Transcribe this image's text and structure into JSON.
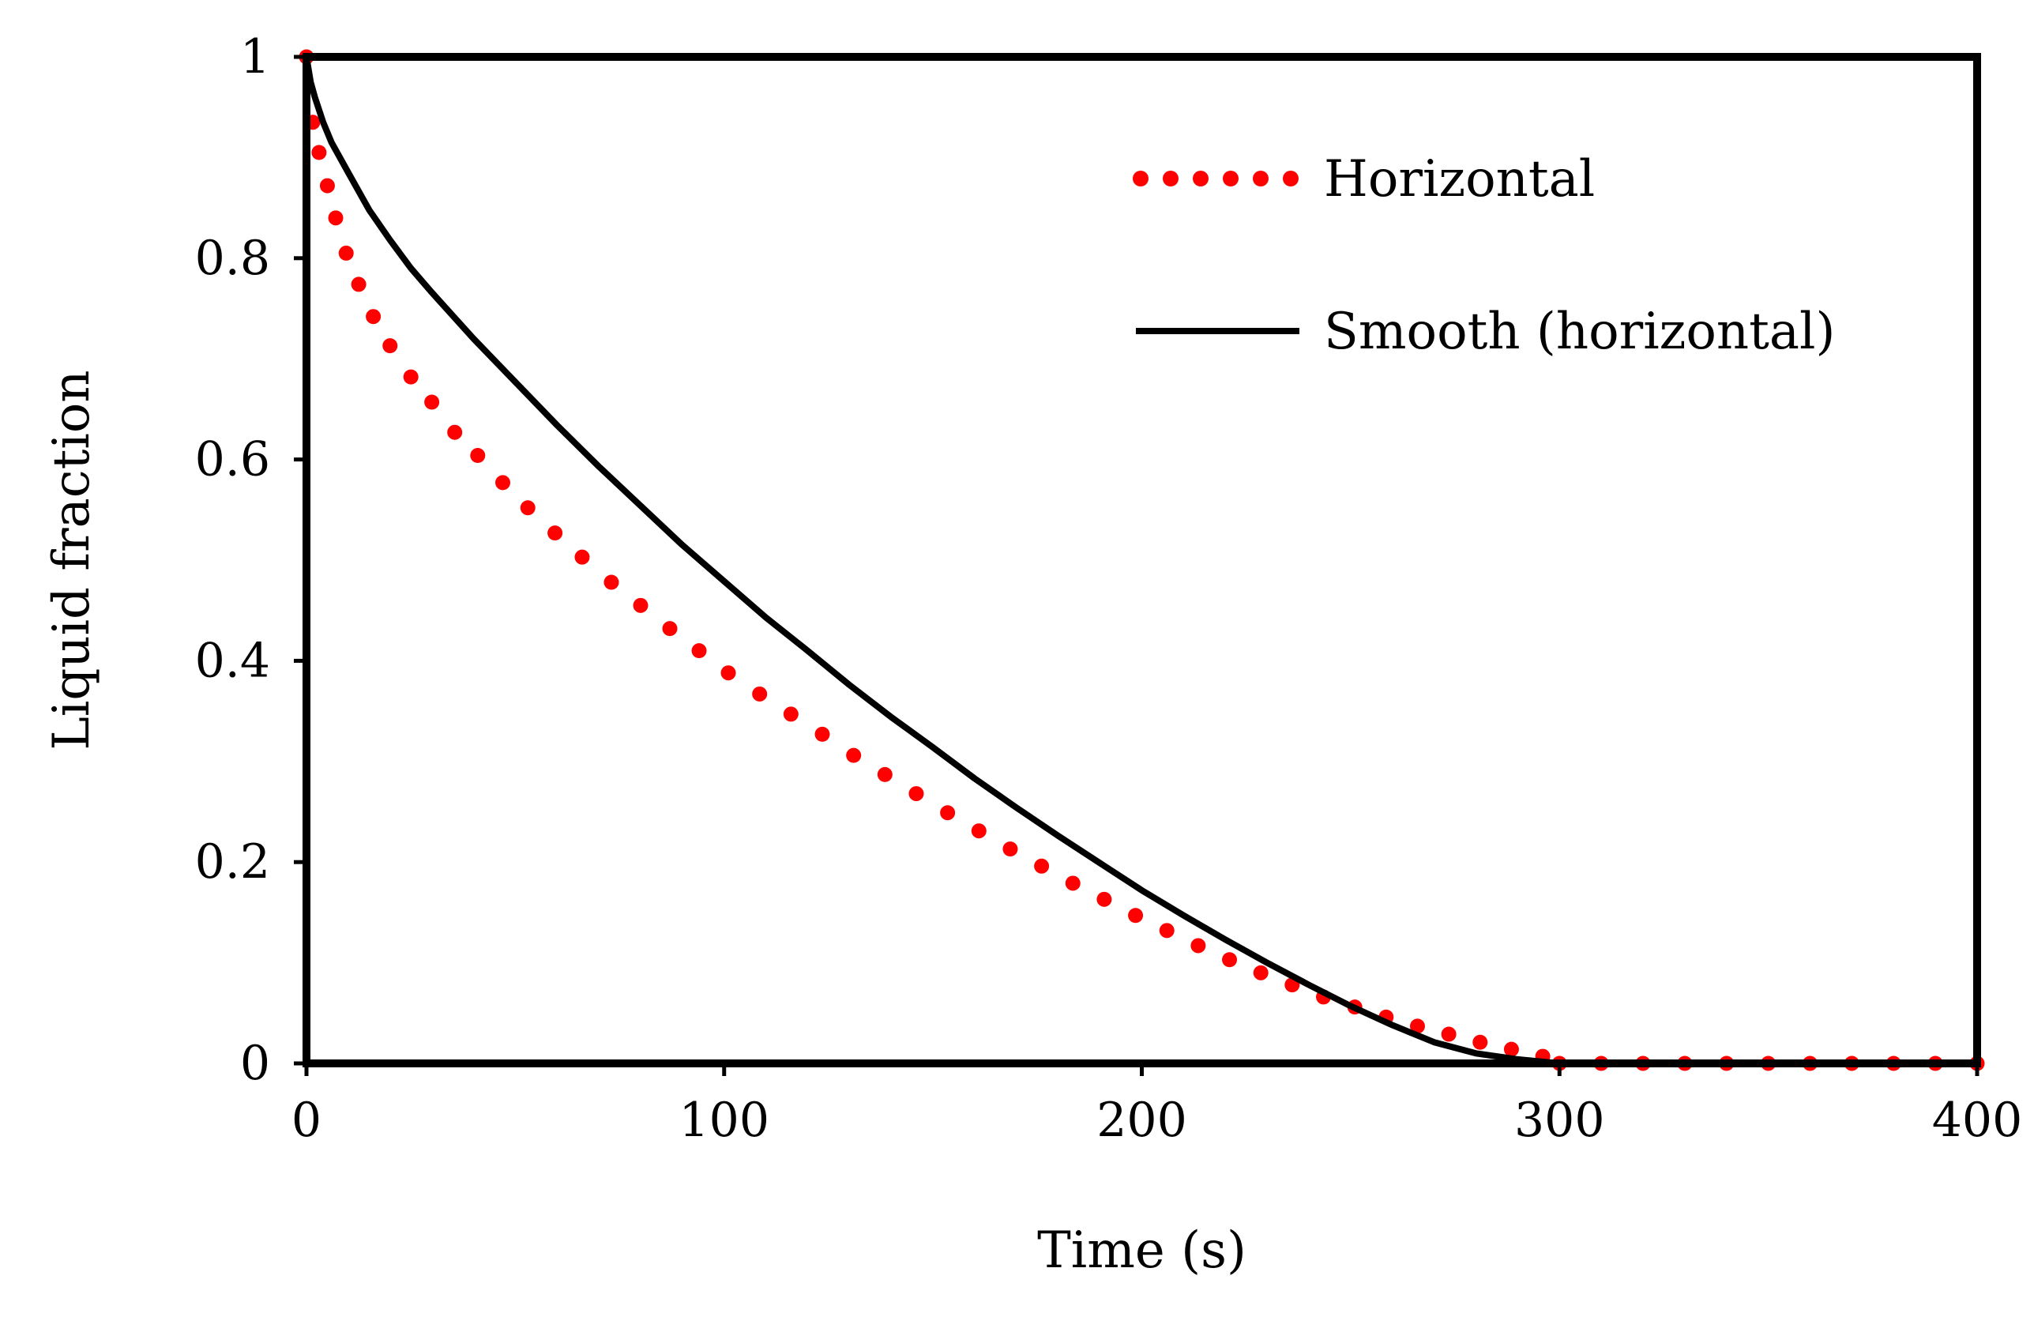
{
  "chart_data": {
    "type": "line",
    "title": "",
    "xlabel": "Time (s)",
    "ylabel": "Liquid fraction",
    "xlim": [
      0,
      400
    ],
    "ylim": [
      0,
      1
    ],
    "xticks": [
      0,
      100,
      200,
      300,
      400
    ],
    "xtick_labels": [
      "0",
      "100",
      "200",
      "300",
      "400"
    ],
    "yticks": [
      0,
      0.2,
      0.4,
      0.6,
      0.8,
      1
    ],
    "ytick_labels": [
      "0",
      "0.2",
      "0.4",
      "0.6",
      "0.8",
      "1"
    ],
    "grid": false,
    "legend_position": "top-right",
    "series": [
      {
        "name": "Horizontal",
        "style": "dotted",
        "color": "#ff0000",
        "x": [
          0,
          1.5,
          3,
          5,
          7,
          9.5,
          12.5,
          16,
          20,
          25,
          30,
          35.5,
          41,
          47,
          53,
          59.5,
          66,
          73,
          80,
          87,
          94,
          101,
          108.5,
          116,
          123.5,
          131,
          138.5,
          146,
          153.5,
          161,
          168.5,
          176,
          183.5,
          191,
          198.5,
          206,
          213.5,
          221,
          228.5,
          236,
          243.5,
          251,
          258.5,
          266,
          273.5,
          281,
          288.5,
          296,
          300,
          310,
          320,
          330,
          340,
          350,
          360,
          370,
          380,
          390,
          400
        ],
        "y": [
          1.0,
          0.935,
          0.905,
          0.872,
          0.84,
          0.805,
          0.774,
          0.742,
          0.713,
          0.682,
          0.657,
          0.627,
          0.604,
          0.577,
          0.552,
          0.527,
          0.503,
          0.478,
          0.455,
          0.432,
          0.41,
          0.388,
          0.367,
          0.347,
          0.327,
          0.306,
          0.287,
          0.268,
          0.249,
          0.231,
          0.213,
          0.196,
          0.179,
          0.163,
          0.147,
          0.132,
          0.117,
          0.103,
          0.09,
          0.078,
          0.066,
          0.056,
          0.046,
          0.037,
          0.029,
          0.021,
          0.014,
          0.007,
          0.0,
          0.0,
          0.0,
          0.0,
          0.0,
          0.0,
          0.0,
          0.0,
          0.0,
          0.0,
          0.0
        ]
      },
      {
        "name": "Smooth (horizontal)",
        "style": "solid",
        "color": "#000000",
        "x": [
          0,
          1,
          2,
          4,
          6,
          10,
          15,
          20,
          25,
          30,
          40,
          50,
          60,
          70,
          80,
          90,
          100,
          110,
          120,
          130,
          140,
          150,
          160,
          170,
          180,
          190,
          200,
          210,
          220,
          230,
          240,
          250,
          260,
          270,
          280,
          290,
          300,
          310,
          320,
          340,
          360,
          380,
          400
        ],
        "y": [
          1.0,
          0.975,
          0.96,
          0.935,
          0.915,
          0.885,
          0.848,
          0.818,
          0.79,
          0.766,
          0.72,
          0.677,
          0.634,
          0.593,
          0.554,
          0.515,
          0.479,
          0.443,
          0.41,
          0.376,
          0.344,
          0.314,
          0.283,
          0.254,
          0.226,
          0.199,
          0.172,
          0.147,
          0.123,
          0.1,
          0.078,
          0.057,
          0.038,
          0.021,
          0.01,
          0.004,
          0.0,
          0.0,
          0.0,
          0.0,
          0.0,
          0.0,
          0.0
        ]
      }
    ]
  }
}
